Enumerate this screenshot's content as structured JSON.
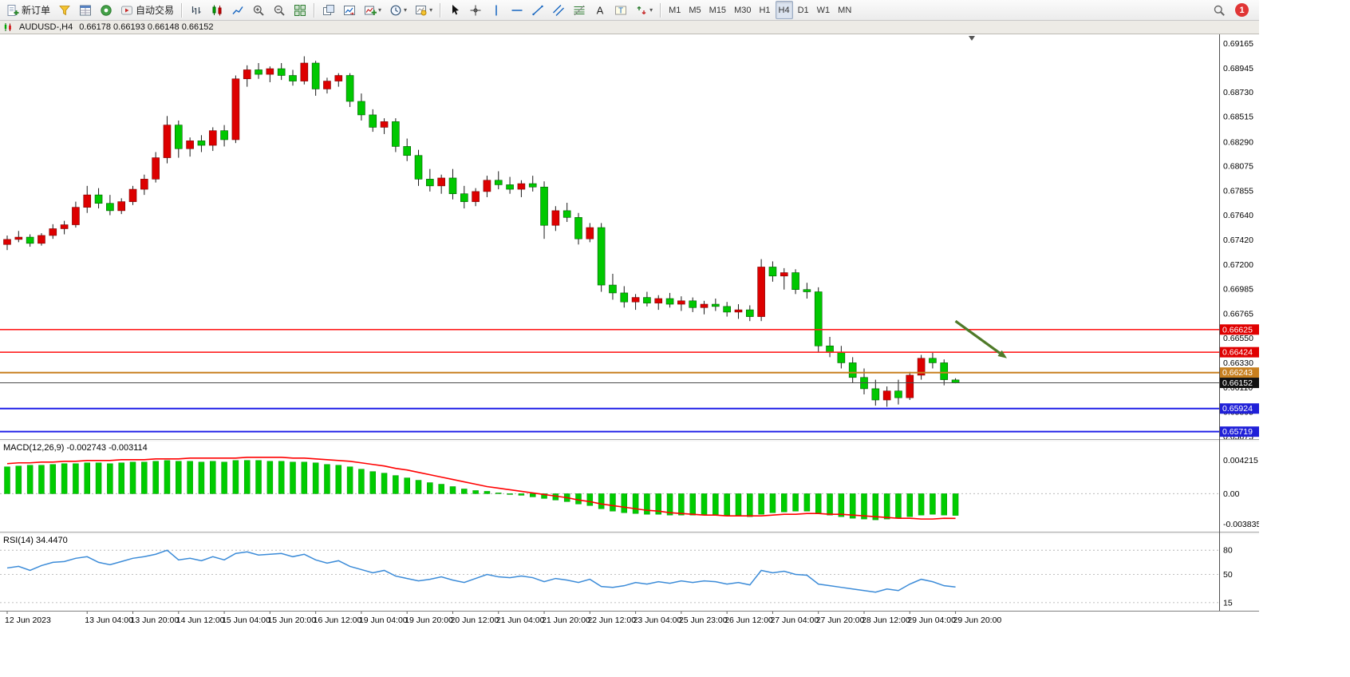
{
  "chart_title": {
    "symbol_timeframe": "AUDUSD-,H4",
    "ohlc": "0.66178 0.66193 0.66148 0.66152"
  },
  "toolbar": {
    "groups": [
      {
        "items": [
          {
            "name": "new-order-button",
            "icon": "new-order-icon",
            "label": "新订单"
          },
          {
            "name": "profiles-button",
            "icon": "profiles-icon"
          },
          {
            "name": "market-watch-button",
            "icon": "market-watch-icon"
          },
          {
            "name": "navigator-button",
            "icon": "navigator-icon"
          },
          {
            "name": "auto-trading-button",
            "icon": "autotrading-icon",
            "label": "自动交易"
          }
        ]
      },
      {
        "items": [
          {
            "name": "bar-chart-button",
            "icon": "bar-chart-icon"
          },
          {
            "name": "candlestick-button",
            "icon": "candlestick-icon"
          },
          {
            "name": "line-chart-button",
            "icon": "line-chart-icon"
          },
          {
            "name": "zoom-in-button",
            "icon": "zoom-in-icon"
          },
          {
            "name": "zoom-out-button",
            "icon": "zoom-out-icon"
          },
          {
            "name": "tile-windows-button",
            "icon": "tile-windows-icon"
          }
        ]
      },
      {
        "items": [
          {
            "name": "auto-arrange-button",
            "icon": "auto-arrange-icon"
          },
          {
            "name": "chart-shift-button",
            "icon": "chart-shift-icon"
          },
          {
            "name": "indicators-button",
            "icon": "indicators-icon",
            "dropdown": true
          },
          {
            "name": "periods-button",
            "icon": "periods-icon",
            "dropdown": true
          },
          {
            "name": "templates-button",
            "icon": "templates-icon",
            "dropdown": true
          }
        ]
      },
      {
        "items": [
          {
            "name": "cursor-button",
            "icon": "cursor-icon"
          },
          {
            "name": "crosshair-button",
            "icon": "crosshair-icon"
          },
          {
            "name": "vertical-line-button",
            "icon": "vertical-line-icon"
          },
          {
            "name": "horizontal-line-button",
            "icon": "horizontal-line-icon"
          },
          {
            "name": "trendline-button",
            "icon": "trendline-icon"
          },
          {
            "name": "channel-button",
            "icon": "channel-icon"
          },
          {
            "name": "fibonacci-button",
            "icon": "fibonacci-icon"
          },
          {
            "name": "text-button",
            "icon": "text-icon"
          },
          {
            "name": "label-button",
            "icon": "label-icon"
          },
          {
            "name": "arrows-button",
            "icon": "arrows-icon",
            "dropdown": true
          }
        ]
      },
      {
        "timeframes": true,
        "items": [
          {
            "name": "timeframe-m1-button",
            "label": "M1"
          },
          {
            "name": "timeframe-m5-button",
            "label": "M5"
          },
          {
            "name": "timeframe-m15-button",
            "label": "M15"
          },
          {
            "name": "timeframe-m30-button",
            "label": "M30"
          },
          {
            "name": "timeframe-h1-button",
            "label": "H1"
          },
          {
            "name": "timeframe-h4-button",
            "label": "H4",
            "active": true
          },
          {
            "name": "timeframe-d1-button",
            "label": "D1"
          },
          {
            "name": "timeframe-w1-button",
            "label": "W1"
          },
          {
            "name": "timeframe-mn-button",
            "label": "MN"
          }
        ]
      }
    ],
    "right": [
      {
        "name": "search-button",
        "icon": "search-icon"
      },
      {
        "name": "notification-badge",
        "label": "1",
        "color": "#E03535"
      }
    ]
  },
  "chart_data": [
    {
      "type": "candlestick",
      "symbol": "AUDUSD-",
      "timeframe": "H4",
      "ylim": [
        0.6566,
        0.69245
      ],
      "y_ticks": [
        "0.69165",
        "0.68945",
        "0.68730",
        "0.68515",
        "0.68290",
        "0.68075",
        "0.67855",
        "0.67640",
        "0.67420",
        "0.67200",
        "0.66985",
        "0.66765",
        "0.66550",
        "0.66330",
        "0.66110",
        "0.65895",
        "0.65675"
      ],
      "time_labels": [
        {
          "i": 0,
          "label": "12 Jun 2023"
        },
        {
          "i": 7,
          "label": "13 Jun 04:00"
        },
        {
          "i": 11,
          "label": "13 Jun 20:00"
        },
        {
          "i": 15,
          "label": "14 Jun 12:00"
        },
        {
          "i": 19,
          "label": "15 Jun 04:00"
        },
        {
          "i": 23,
          "label": "15 Jun 20:00"
        },
        {
          "i": 27,
          "label": "16 Jun 12:00"
        },
        {
          "i": 31,
          "label": "19 Jun 04:00"
        },
        {
          "i": 35,
          "label": "19 Jun 20:00"
        },
        {
          "i": 39,
          "label": "20 Jun 12:00"
        },
        {
          "i": 43,
          "label": "21 Jun 04:00"
        },
        {
          "i": 47,
          "label": "21 Jun 20:00"
        },
        {
          "i": 51,
          "label": "22 Jun 12:00"
        },
        {
          "i": 55,
          "label": "23 Jun 04:00"
        },
        {
          "i": 59,
          "label": "25 Jun 23:00"
        },
        {
          "i": 63,
          "label": "26 Jun 12:00"
        },
        {
          "i": 67,
          "label": "27 Jun 04:00"
        },
        {
          "i": 71,
          "label": "27 Jun 20:00"
        },
        {
          "i": 75,
          "label": "28 Jun 12:00"
        },
        {
          "i": 79,
          "label": "29 Jun 04:00"
        },
        {
          "i": 83,
          "label": "29 Jun 20:00"
        }
      ],
      "ohlc": [
        [
          0.6738,
          0.6746,
          0.6733,
          0.67425
        ],
        [
          0.67425,
          0.675,
          0.674,
          0.67445
        ],
        [
          0.67445,
          0.6747,
          0.6736,
          0.6739
        ],
        [
          0.6739,
          0.6748,
          0.6737,
          0.6746
        ],
        [
          0.6746,
          0.6756,
          0.6743,
          0.6752
        ],
        [
          0.6752,
          0.6759,
          0.6747,
          0.67555
        ],
        [
          0.67555,
          0.6776,
          0.6753,
          0.6771
        ],
        [
          0.6771,
          0.679,
          0.6766,
          0.6782
        ],
        [
          0.6782,
          0.6788,
          0.677,
          0.67745
        ],
        [
          0.67745,
          0.6782,
          0.6764,
          0.6768
        ],
        [
          0.6768,
          0.6779,
          0.6765,
          0.6776
        ],
        [
          0.6776,
          0.679,
          0.6773,
          0.6787
        ],
        [
          0.6787,
          0.68,
          0.6782,
          0.6796
        ],
        [
          0.6796,
          0.682,
          0.6793,
          0.6815
        ],
        [
          0.6815,
          0.6852,
          0.681,
          0.6844
        ],
        [
          0.6844,
          0.6848,
          0.6815,
          0.6823
        ],
        [
          0.6823,
          0.6833,
          0.6816,
          0.683
        ],
        [
          0.683,
          0.6835,
          0.682,
          0.6826
        ],
        [
          0.6826,
          0.6842,
          0.6821,
          0.6839
        ],
        [
          0.6839,
          0.6844,
          0.6825,
          0.6831
        ],
        [
          0.6831,
          0.6888,
          0.6828,
          0.6885
        ],
        [
          0.6885,
          0.6897,
          0.6878,
          0.6893
        ],
        [
          0.6893,
          0.6899,
          0.6885,
          0.6889
        ],
        [
          0.6889,
          0.6896,
          0.6882,
          0.6894
        ],
        [
          0.6894,
          0.6899,
          0.6884,
          0.6888
        ],
        [
          0.6888,
          0.6893,
          0.6879,
          0.6883
        ],
        [
          0.6883,
          0.6905,
          0.688,
          0.6899
        ],
        [
          0.6899,
          0.6901,
          0.687,
          0.6876
        ],
        [
          0.6876,
          0.6886,
          0.6872,
          0.6883
        ],
        [
          0.6883,
          0.689,
          0.6878,
          0.6888
        ],
        [
          0.6888,
          0.689,
          0.686,
          0.6865
        ],
        [
          0.6865,
          0.6872,
          0.6848,
          0.6853
        ],
        [
          0.6853,
          0.6858,
          0.6838,
          0.6842
        ],
        [
          0.6842,
          0.685,
          0.6836,
          0.6847
        ],
        [
          0.6847,
          0.685,
          0.682,
          0.6825
        ],
        [
          0.6825,
          0.6832,
          0.6812,
          0.6817
        ],
        [
          0.6817,
          0.6822,
          0.679,
          0.6796
        ],
        [
          0.6796,
          0.6805,
          0.6785,
          0.679
        ],
        [
          0.679,
          0.68,
          0.6783,
          0.6797
        ],
        [
          0.6797,
          0.6805,
          0.6778,
          0.6783
        ],
        [
          0.6783,
          0.679,
          0.677,
          0.6776
        ],
        [
          0.6776,
          0.6788,
          0.6772,
          0.6785
        ],
        [
          0.6785,
          0.6799,
          0.678,
          0.6795
        ],
        [
          0.6795,
          0.6803,
          0.6787,
          0.6791
        ],
        [
          0.6791,
          0.6798,
          0.6783,
          0.6787
        ],
        [
          0.6787,
          0.6795,
          0.678,
          0.6792
        ],
        [
          0.6792,
          0.6799,
          0.6785,
          0.6789
        ],
        [
          0.6789,
          0.6794,
          0.6743,
          0.6755
        ],
        [
          0.6755,
          0.6772,
          0.675,
          0.6768
        ],
        [
          0.6768,
          0.6775,
          0.6758,
          0.6762
        ],
        [
          0.6762,
          0.6766,
          0.6738,
          0.6743
        ],
        [
          0.6743,
          0.6757,
          0.674,
          0.6753
        ],
        [
          0.6753,
          0.6757,
          0.6696,
          0.6702
        ],
        [
          0.6702,
          0.6712,
          0.6689,
          0.6695
        ],
        [
          0.6695,
          0.6701,
          0.6682,
          0.6687
        ],
        [
          0.6687,
          0.6694,
          0.668,
          0.6691
        ],
        [
          0.6691,
          0.6696,
          0.6683,
          0.6686
        ],
        [
          0.6686,
          0.6693,
          0.668,
          0.669
        ],
        [
          0.669,
          0.6695,
          0.6682,
          0.6685
        ],
        [
          0.6685,
          0.6692,
          0.6679,
          0.6688
        ],
        [
          0.6688,
          0.6691,
          0.6678,
          0.6682
        ],
        [
          0.6682,
          0.6688,
          0.6676,
          0.6685
        ],
        [
          0.6685,
          0.669,
          0.6679,
          0.6683
        ],
        [
          0.6683,
          0.6687,
          0.6674,
          0.6678
        ],
        [
          0.6678,
          0.6685,
          0.6672,
          0.668
        ],
        [
          0.668,
          0.6684,
          0.667,
          0.6674
        ],
        [
          0.6674,
          0.6725,
          0.667,
          0.6718
        ],
        [
          0.6718,
          0.6723,
          0.6705,
          0.671
        ],
        [
          0.671,
          0.6717,
          0.6698,
          0.6713
        ],
        [
          0.6713,
          0.6716,
          0.6694,
          0.6698
        ],
        [
          0.6698,
          0.6704,
          0.669,
          0.6696
        ],
        [
          0.6696,
          0.67,
          0.6642,
          0.6648
        ],
        [
          0.6648,
          0.6656,
          0.6638,
          0.6642
        ],
        [
          0.6642,
          0.6648,
          0.6628,
          0.6633
        ],
        [
          0.6633,
          0.6638,
          0.6615,
          0.662
        ],
        [
          0.662,
          0.6628,
          0.6605,
          0.661
        ],
        [
          0.661,
          0.6618,
          0.6595,
          0.66
        ],
        [
          0.66,
          0.6612,
          0.6594,
          0.6608
        ],
        [
          0.6608,
          0.6618,
          0.6596,
          0.6602
        ],
        [
          0.6602,
          0.6625,
          0.66,
          0.6622
        ],
        [
          0.6622,
          0.664,
          0.6618,
          0.6637
        ],
        [
          0.6637,
          0.6642,
          0.6628,
          0.6633
        ],
        [
          0.6633,
          0.6636,
          0.6613,
          0.6618
        ],
        [
          0.66178,
          0.66193,
          0.66148,
          0.66152
        ]
      ],
      "hlines": [
        {
          "price": 0.66625,
          "color": "#FF2020",
          "width": 1.6,
          "label": "0.66625",
          "label_bg": "#E00000"
        },
        {
          "price": 0.66424,
          "color": "#FF2020",
          "width": 1.6,
          "label": "0.66424",
          "label_bg": "#E00000"
        },
        {
          "price": 0.66243,
          "color": "#C88020",
          "width": 2,
          "label": "0.66243",
          "label_bg": "#C88020"
        },
        {
          "price": 0.66152,
          "color": "#4A4A4A",
          "width": 1,
          "label": "0.66152",
          "label_bg": "#111111"
        },
        {
          "price": 0.65924,
          "color": "#2020E8",
          "width": 2,
          "label": "0.65924",
          "label_bg": "#2020D8"
        },
        {
          "price": 0.65719,
          "color": "#2020E8",
          "width": 2,
          "label": "0.65719",
          "label_bg": "#2020D8"
        }
      ],
      "current_price": "0.66152",
      "arrow_annotation": {
        "from_index": 83,
        "from_price": 0.667,
        "to_index": 87.5,
        "to_price": 0.6637,
        "color": "#4F7A28"
      },
      "colors": {
        "bull": "#DD0000",
        "bear": "#00C800",
        "wick": "#1A1A1A"
      }
    },
    {
      "type": "bar",
      "name": "MACD",
      "label": "MACD(12,26,9) -0.002743 -0.003114",
      "ylim": [
        -0.0047,
        0.0066
      ],
      "y_ticks": [
        "0.004215",
        "0.00",
        "-0.003835"
      ],
      "values": [
        0.0034,
        0.0035,
        0.0036,
        0.0036,
        0.0037,
        0.0038,
        0.0038,
        0.0039,
        0.0039,
        0.0038,
        0.0039,
        0.004,
        0.004,
        0.0041,
        0.0042,
        0.0041,
        0.0041,
        0.004,
        0.0041,
        0.004,
        0.0042,
        0.00421,
        0.0042,
        0.0041,
        0.0041,
        0.004,
        0.004,
        0.0039,
        0.0037,
        0.0036,
        0.0034,
        0.0031,
        0.0028,
        0.0026,
        0.0023,
        0.002,
        0.0017,
        0.0014,
        0.0012,
        0.0009,
        0.0006,
        0.0004,
        0.0003,
        0.0001,
        -0.0001,
        -0.0002,
        -0.0004,
        -0.0006,
        -0.0008,
        -0.001,
        -0.0013,
        -0.0015,
        -0.0019,
        -0.0022,
        -0.0024,
        -0.0025,
        -0.0026,
        -0.0026,
        -0.0027,
        -0.0027,
        -0.0027,
        -0.0027,
        -0.0027,
        -0.0028,
        -0.0028,
        -0.0029,
        -0.0026,
        -0.0024,
        -0.0023,
        -0.0022,
        -0.0022,
        -0.0025,
        -0.0027,
        -0.0029,
        -0.0031,
        -0.0032,
        -0.0033,
        -0.0032,
        -0.0031,
        -0.0029,
        -0.0027,
        -0.0026,
        -0.0027,
        -0.002743
      ],
      "signal": [
        0.0038,
        0.0039,
        0.0039,
        0.004,
        0.004,
        0.0041,
        0.0041,
        0.0042,
        0.0042,
        0.0042,
        0.0043,
        0.0043,
        0.0043,
        0.0044,
        0.0044,
        0.0044,
        0.0045,
        0.0045,
        0.0045,
        0.0045,
        0.0045,
        0.0046,
        0.0046,
        0.0046,
        0.0046,
        0.0045,
        0.0045,
        0.0044,
        0.0043,
        0.0042,
        0.0041,
        0.0039,
        0.0037,
        0.0035,
        0.0032,
        0.003,
        0.0027,
        0.0024,
        0.0021,
        0.0018,
        0.0015,
        0.0012,
        0.0009,
        0.0007,
        0.0005,
        0.0003,
        0.0001,
        -0.0001,
        -0.0003,
        -0.0005,
        -0.0008,
        -0.001,
        -0.0013,
        -0.0015,
        -0.0017,
        -0.0019,
        -0.0021,
        -0.0022,
        -0.0024,
        -0.0025,
        -0.0026,
        -0.0027,
        -0.0027,
        -0.0028,
        -0.0028,
        -0.0028,
        -0.0028,
        -0.0027,
        -0.0026,
        -0.0026,
        -0.0025,
        -0.0025,
        -0.0026,
        -0.0026,
        -0.0027,
        -0.0028,
        -0.0029,
        -0.003,
        -0.0031,
        -0.0031,
        -0.0032,
        -0.0032,
        -0.0031,
        -0.003114
      ],
      "colors": {
        "histogram": "#00CC00",
        "signal": "#FF0000"
      }
    },
    {
      "type": "line",
      "name": "RSI",
      "label": "RSI(14) 34.4470",
      "ylim": [
        5,
        100
      ],
      "levels": [
        80,
        50,
        15
      ],
      "y_ticks": [
        "80",
        "50",
        "15"
      ],
      "values": [
        58,
        60,
        55,
        61,
        65,
        66,
        70,
        72,
        65,
        62,
        66,
        70,
        72,
        75,
        80,
        68,
        70,
        67,
        72,
        68,
        76,
        78,
        74,
        75,
        76,
        72,
        75,
        68,
        64,
        67,
        60,
        56,
        52,
        55,
        48,
        45,
        42,
        44,
        47,
        43,
        40,
        45,
        50,
        47,
        46,
        48,
        46,
        41,
        45,
        43,
        40,
        44,
        35,
        34,
        36,
        40,
        38,
        41,
        39,
        42,
        40,
        42,
        41,
        38,
        40,
        37,
        55,
        52,
        54,
        50,
        49,
        38,
        36,
        34,
        32,
        30,
        28,
        32,
        30,
        38,
        44,
        41,
        36,
        34.447
      ],
      "colors": {
        "line": "#3B8BD8"
      }
    }
  ]
}
